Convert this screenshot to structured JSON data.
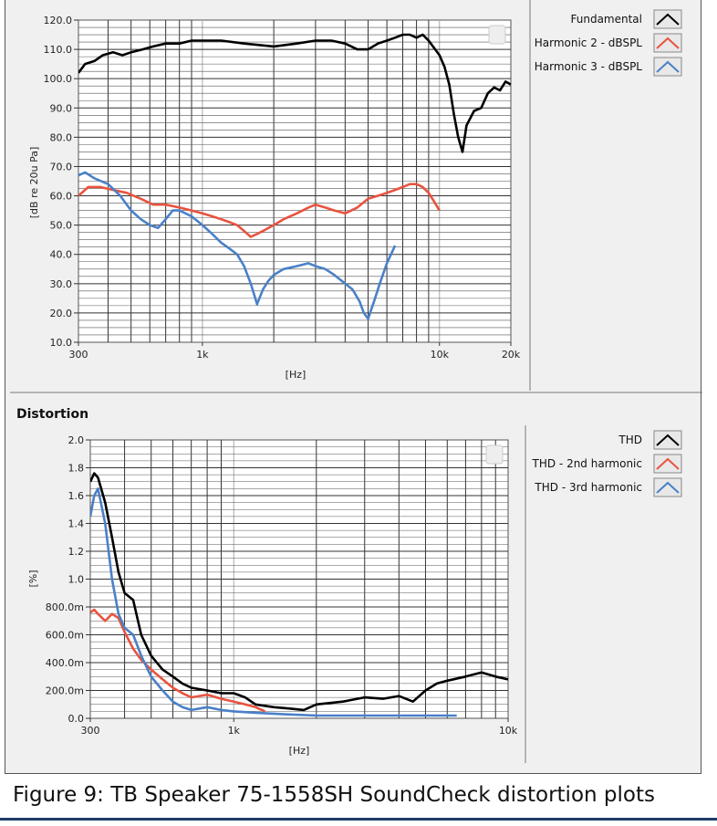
{
  "figure": {
    "caption": "Figure 9: TB Speaker 75-1558SH SoundCheck distortion plots"
  },
  "chart_data": [
    {
      "type": "line",
      "title": "",
      "xlabel": "[Hz]",
      "ylabel": "[dB re 20u Pa]",
      "xscale": "log",
      "xlim": [
        300,
        20000
      ],
      "ylim": [
        10,
        120
      ],
      "x_tick_labels": [
        "300",
        "1k",
        "10k",
        "20k"
      ],
      "x_ticks": [
        300,
        1000,
        10000,
        20000
      ],
      "y_ticks": [
        10,
        20,
        30,
        40,
        50,
        60,
        70,
        80,
        90,
        100,
        110,
        120
      ],
      "y_tick_labels": [
        "10.0",
        "20.0",
        "30.0",
        "40.0",
        "50.0",
        "60.0",
        "70.0",
        "80.0",
        "90.0",
        "100.0",
        "110.0",
        "120.0"
      ],
      "grid": true,
      "legend": "right",
      "series": [
        {
          "name": "Fundamental",
          "color": "#000000",
          "x": [
            300,
            320,
            350,
            380,
            420,
            460,
            500,
            560,
            620,
            700,
            800,
            900,
            1000,
            1200,
            1500,
            2000,
            2500,
            3000,
            3500,
            4000,
            4500,
            5000,
            5500,
            6000,
            6500,
            7000,
            7500,
            8000,
            8500,
            9000,
            10000,
            10500,
            11000,
            11500,
            12000,
            12500,
            13000,
            14000,
            15000,
            16000,
            17000,
            18000,
            19000,
            20000
          ],
          "y": [
            102,
            105,
            106,
            108,
            109,
            108,
            109,
            110,
            111,
            112,
            112,
            113,
            113,
            113,
            112,
            111,
            112,
            113,
            113,
            112,
            110,
            110,
            112,
            113,
            114,
            115,
            115,
            114,
            115,
            113,
            108,
            104,
            98,
            88,
            80,
            75,
            84,
            89,
            90,
            95,
            97,
            96,
            99,
            98
          ]
        },
        {
          "name": "Harmonic 2 - dBSPL",
          "color": "#e8533f",
          "x": [
            300,
            330,
            370,
            420,
            480,
            550,
            620,
            700,
            800,
            900,
            1000,
            1100,
            1200,
            1300,
            1400,
            1500,
            1600,
            1700,
            1800,
            2000,
            2200,
            2500,
            2800,
            3000,
            3300,
            3600,
            4000,
            4500,
            5000,
            5500,
            6000,
            6500,
            7000,
            7500,
            8000,
            8500,
            9000,
            9500,
            10000
          ],
          "y": [
            60,
            63,
            63,
            62,
            61,
            59,
            57,
            57,
            56,
            55,
            54,
            53,
            52,
            51,
            50,
            48,
            46,
            47,
            48,
            50,
            52,
            54,
            56,
            57,
            56,
            55,
            54,
            56,
            59,
            60,
            61,
            62,
            63,
            64,
            64,
            63,
            61,
            58,
            55
          ]
        },
        {
          "name": "Harmonic 3 - dBSPL",
          "color": "#4a80c8",
          "x": [
            300,
            320,
            350,
            400,
            450,
            500,
            550,
            600,
            650,
            700,
            750,
            800,
            900,
            1000,
            1100,
            1200,
            1300,
            1400,
            1500,
            1600,
            1700,
            1800,
            1900,
            2000,
            2200,
            2500,
            2800,
            3000,
            3300,
            3600,
            4000,
            4300,
            4600,
            4800,
            5000,
            5300,
            5600,
            6000,
            6500
          ],
          "y": [
            67,
            68,
            66,
            64,
            60,
            55,
            52,
            50,
            49,
            52,
            55,
            55,
            53,
            50,
            47,
            44,
            42,
            40,
            36,
            30,
            23,
            28,
            31,
            33,
            35,
            36,
            37,
            36,
            35,
            33,
            30,
            28,
            24,
            20,
            18,
            24,
            30,
            37,
            43
          ]
        }
      ]
    },
    {
      "type": "line",
      "title": "Distortion",
      "xlabel": "[Hz]",
      "ylabel": "[%]",
      "xscale": "log",
      "xlim": [
        300,
        10000
      ],
      "ylim": [
        0,
        2
      ],
      "x_tick_labels": [
        "300",
        "1k",
        "10k"
      ],
      "x_ticks": [
        300,
        1000,
        10000
      ],
      "y_ticks": [
        0,
        0.2,
        0.4,
        0.6,
        0.8,
        1.0,
        1.2,
        1.4,
        1.6,
        1.8,
        2.0
      ],
      "y_tick_labels": [
        "0.0",
        "200.0m",
        "400.0m",
        "600.0m",
        "800.0m",
        "1.0",
        "1.2",
        "1.4",
        "1.6",
        "1.8",
        "2.0"
      ],
      "grid": true,
      "legend": "right",
      "series": [
        {
          "name": "THD",
          "color": "#000000",
          "x": [
            300,
            310,
            320,
            340,
            360,
            380,
            400,
            430,
            460,
            500,
            550,
            600,
            650,
            700,
            800,
            900,
            1000,
            1100,
            1200,
            1400,
            1600,
            1800,
            2000,
            2500,
            3000,
            3500,
            4000,
            4500,
            5000,
            5500,
            6000,
            7000,
            8000,
            9000,
            10000
          ],
          "y": [
            1.7,
            1.76,
            1.73,
            1.55,
            1.3,
            1.05,
            0.9,
            0.85,
            0.6,
            0.45,
            0.35,
            0.3,
            0.25,
            0.22,
            0.2,
            0.18,
            0.18,
            0.15,
            0.1,
            0.08,
            0.07,
            0.06,
            0.1,
            0.12,
            0.15,
            0.14,
            0.16,
            0.12,
            0.2,
            0.25,
            0.27,
            0.3,
            0.33,
            0.3,
            0.28
          ]
        },
        {
          "name": "THD - 2nd harmonic",
          "color": "#e8533f",
          "x": [
            300,
            310,
            320,
            340,
            360,
            380,
            400,
            430,
            460,
            500,
            550,
            600,
            650,
            700,
            800,
            900,
            1000,
            1100,
            1200,
            1300
          ],
          "y": [
            0.76,
            0.78,
            0.75,
            0.7,
            0.75,
            0.72,
            0.62,
            0.5,
            0.42,
            0.35,
            0.28,
            0.22,
            0.18,
            0.15,
            0.17,
            0.14,
            0.12,
            0.1,
            0.08,
            0.05
          ]
        },
        {
          "name": "THD - 3rd harmonic",
          "color": "#4a80c8",
          "x": [
            300,
            310,
            320,
            340,
            360,
            380,
            400,
            430,
            460,
            500,
            550,
            600,
            650,
            700,
            800,
            900,
            1000,
            1200,
            1500,
            2000,
            3000,
            4000,
            5000,
            6000,
            6500
          ],
          "y": [
            1.45,
            1.6,
            1.65,
            1.4,
            1.0,
            0.75,
            0.65,
            0.6,
            0.45,
            0.3,
            0.2,
            0.12,
            0.08,
            0.06,
            0.08,
            0.06,
            0.05,
            0.04,
            0.03,
            0.02,
            0.02,
            0.02,
            0.02,
            0.02,
            0.02
          ]
        }
      ]
    }
  ]
}
